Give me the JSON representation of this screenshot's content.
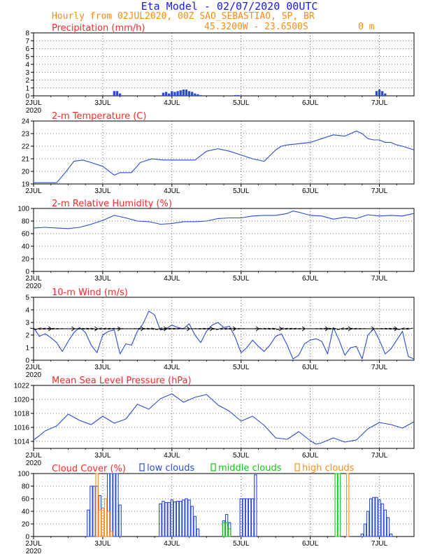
{
  "header": {
    "line1": "Eta Model - 02/07/2020 00UTC",
    "line2": "Hourly from 02JUL2020, 00Z  SAO_SEBASTIAO, SP, BR",
    "coords": "45.3200W - 23.6500S",
    "elevation": "0  m"
  },
  "day_labels": [
    "2JUL",
    "3JUL",
    "4JUL",
    "5JUL",
    "6JUL",
    "7JUL"
  ],
  "year_label": "2020",
  "colors": {
    "title": "#ff2a2a",
    "line": "#2a4bd7",
    "low": "#2a4bd7",
    "mid": "#11c611",
    "high": "#ff8c1a"
  },
  "chart_data": [
    {
      "type": "bar",
      "title": "Precipitation (mm/h)",
      "ylim": [
        0,
        8
      ],
      "yticks": [
        0,
        1,
        2,
        3,
        4,
        5,
        6,
        7,
        8
      ],
      "x": [
        28,
        29,
        30,
        45,
        46,
        47,
        48,
        49,
        50,
        51,
        52,
        53,
        54,
        55,
        56,
        57,
        58,
        70,
        71,
        119,
        120,
        121,
        122
      ],
      "values": [
        0.6,
        0.6,
        0.3,
        0.4,
        0.5,
        0.3,
        0.6,
        0.5,
        0.6,
        0.7,
        0.8,
        0.8,
        0.6,
        0.5,
        0.3,
        0.2,
        0.1,
        0.1,
        0.1,
        0.6,
        0.8,
        0.6,
        0.3
      ]
    },
    {
      "type": "line",
      "title": "2-m Temperature (C)",
      "ylim": [
        19,
        24
      ],
      "yticks": [
        19,
        20,
        21,
        22,
        23,
        24
      ],
      "x": [
        0,
        3,
        8,
        11,
        14,
        17,
        20,
        24,
        28,
        30,
        34,
        37,
        41,
        45,
        48,
        52,
        56,
        60,
        64,
        68,
        72,
        76,
        80,
        84,
        86,
        88,
        92,
        96,
        100,
        104,
        108,
        112,
        114,
        116,
        118,
        120,
        122,
        124,
        126,
        128,
        132
      ],
      "values": [
        19.1,
        19.1,
        19.1,
        19.9,
        20.8,
        20.9,
        20.7,
        20.4,
        19.7,
        19.9,
        19.9,
        20.7,
        21.0,
        20.9,
        20.9,
        20.9,
        20.9,
        21.6,
        21.8,
        21.6,
        21.3,
        21.0,
        20.8,
        21.7,
        22.0,
        22.1,
        22.2,
        22.3,
        22.6,
        22.9,
        22.8,
        23.2,
        23.0,
        22.6,
        22.5,
        22.5,
        22.3,
        22.3,
        22.1,
        22.0,
        21.7
      ]
    },
    {
      "type": "line",
      "title": "2-m Relative Humidity (%)",
      "ylim": [
        0,
        100
      ],
      "yticks": [
        0,
        20,
        40,
        60,
        80,
        100
      ],
      "x": [
        0,
        4,
        8,
        12,
        16,
        20,
        24,
        28,
        32,
        36,
        40,
        44,
        48,
        52,
        56,
        60,
        64,
        68,
        72,
        76,
        80,
        84,
        88,
        90,
        92,
        96,
        100,
        104,
        108,
        112,
        116,
        120,
        124,
        128,
        132
      ],
      "values": [
        69,
        70,
        69,
        68,
        70,
        75,
        81,
        89,
        85,
        80,
        79,
        75,
        76,
        79,
        79,
        80,
        84,
        85,
        85,
        88,
        89,
        89,
        92,
        96,
        94,
        89,
        88,
        83,
        86,
        84,
        90,
        88,
        89,
        88,
        92
      ]
    },
    {
      "type": "line",
      "title": "10-m Wind (m/s)",
      "ylim": [
        0,
        5
      ],
      "yticks": [
        0,
        1,
        2,
        3,
        4,
        5
      ],
      "x": [
        0,
        2,
        4,
        6,
        8,
        10,
        12,
        14,
        16,
        18,
        20,
        22,
        24,
        26,
        28,
        30,
        32,
        34,
        36,
        38,
        40,
        42,
        44,
        46,
        48,
        50,
        52,
        54,
        56,
        58,
        60,
        62,
        64,
        66,
        68,
        70,
        72,
        74,
        76,
        78,
        80,
        82,
        84,
        86,
        88,
        90,
        92,
        94,
        96,
        98,
        100,
        102,
        104,
        106,
        108,
        110,
        112,
        114,
        116,
        118,
        120,
        122,
        124,
        126,
        128,
        130,
        132
      ],
      "values": [
        2.6,
        1.9,
        2.1,
        1.8,
        1.4,
        0.7,
        1.5,
        2.2,
        2.6,
        2.2,
        1.2,
        0.6,
        2.0,
        2.3,
        2.4,
        0.5,
        1.3,
        1.2,
        2.3,
        2.9,
        3.9,
        3.6,
        2.4,
        2.5,
        2.8,
        2.6,
        2.5,
        2.9,
        2.0,
        1.4,
        2.3,
        2.8,
        3.0,
        2.6,
        2.7,
        1.8,
        0.6,
        1.0,
        1.6,
        1.1,
        0.7,
        1.2,
        1.9,
        2.1,
        1.2,
        0.1,
        0.4,
        1.3,
        1.6,
        1.7,
        1.5,
        0.5,
        2.6,
        1.6,
        0.4,
        1.0,
        1.1,
        0.1,
        2.0,
        2.5,
        1.6,
        0.5,
        0.9,
        1.6,
        2.3,
        0.3,
        0.1
      ]
    },
    {
      "type": "line",
      "title": "Mean Sea Level Pressure (hPa)",
      "ylim": [
        1013,
        1022
      ],
      "yticks": [
        1014,
        1016,
        1018,
        1020,
        1022
      ],
      "x": [
        0,
        2,
        4,
        8,
        12,
        16,
        20,
        24,
        28,
        32,
        36,
        40,
        44,
        48,
        52,
        56,
        60,
        64,
        68,
        72,
        76,
        80,
        84,
        88,
        92,
        96,
        98,
        100,
        104,
        108,
        112,
        116,
        120,
        124,
        128,
        132
      ],
      "values": [
        1014.2,
        1014.8,
        1015.5,
        1016.2,
        1017.9,
        1017.0,
        1016.4,
        1017.6,
        1016.6,
        1017.2,
        1019.3,
        1018.6,
        1020.1,
        1020.8,
        1019.6,
        1020.3,
        1020.7,
        1019.2,
        1018.3,
        1016.9,
        1017.6,
        1016.3,
        1014.5,
        1014.3,
        1015.4,
        1014.1,
        1013.6,
        1013.8,
        1014.5,
        1013.9,
        1014.2,
        1015.8,
        1016.7,
        1016.4,
        1015.9,
        1016.8
      ]
    },
    {
      "type": "bar",
      "title": "Cloud Cover (%)",
      "ylim": [
        0,
        100
      ],
      "yticks": [
        0,
        20,
        40,
        60,
        80,
        100
      ],
      "legend": [
        "low clouds",
        "middle clouds",
        "high clouds"
      ],
      "series": [
        {
          "name": "low clouds",
          "x": [
            19,
            20,
            21,
            22,
            23,
            26,
            27,
            28,
            29,
            30,
            44,
            45,
            46,
            47,
            48,
            49,
            50,
            51,
            52,
            53,
            54,
            55,
            56,
            57,
            66,
            67,
            68,
            72,
            73,
            74,
            75,
            76,
            77,
            114,
            115,
            116,
            117,
            118,
            119,
            120,
            121,
            122,
            123,
            124
          ],
          "values": [
            42,
            80,
            80,
            80,
            65,
            100,
            100,
            100,
            100,
            50,
            52,
            56,
            54,
            54,
            58,
            55,
            56,
            56,
            58,
            60,
            58,
            48,
            32,
            12,
            25,
            35,
            22,
            60,
            60,
            60,
            60,
            60,
            98,
            4,
            20,
            40,
            60,
            62,
            62,
            58,
            52,
            42,
            30,
            4
          ]
        },
        {
          "name": "middle clouds",
          "x": [
            66,
            67,
            68,
            105,
            106
          ],
          "values": [
            22,
            22,
            12,
            100,
            100
          ]
        },
        {
          "name": "high clouds",
          "x": [
            22,
            24,
            25,
            23,
            26,
            27,
            109
          ],
          "values": [
            100,
            45,
            60,
            42,
            40,
            8,
            100
          ]
        }
      ]
    }
  ]
}
